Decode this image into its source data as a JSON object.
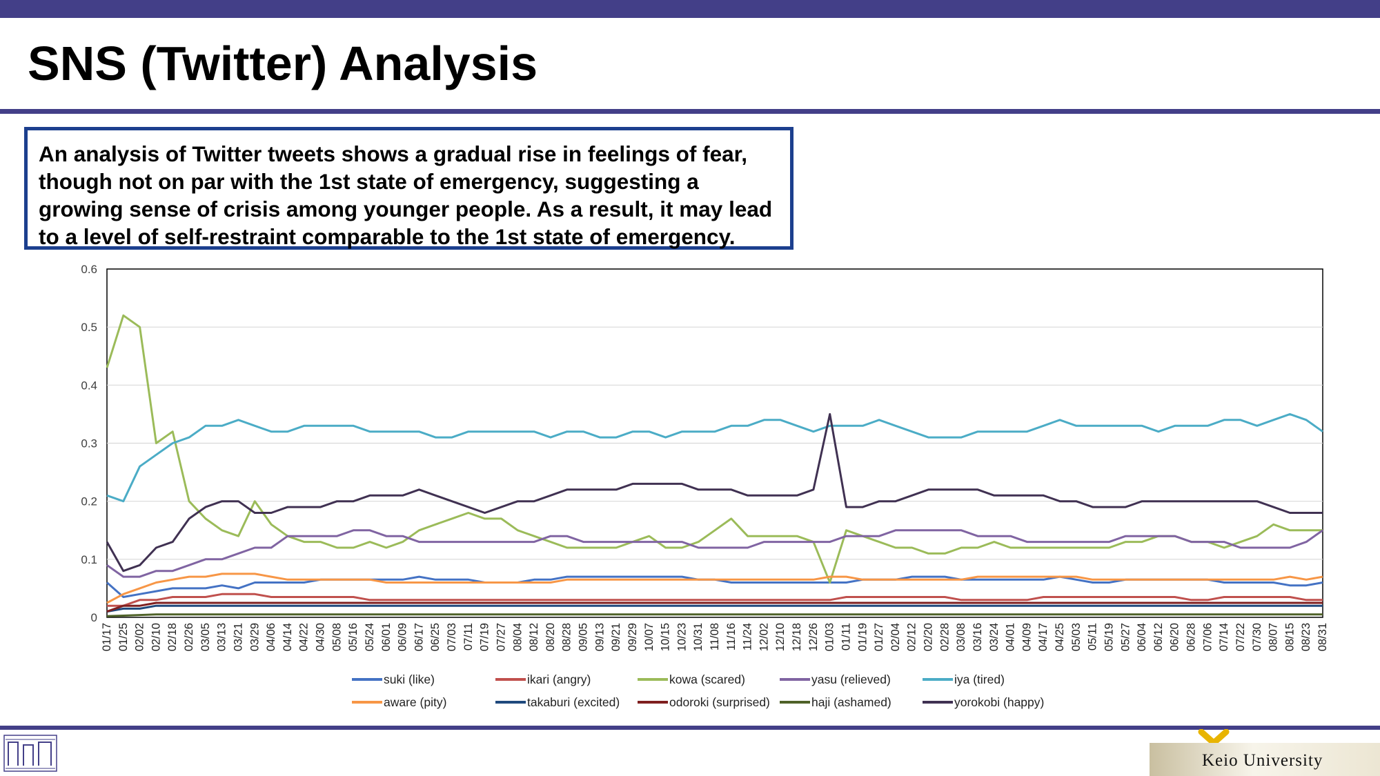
{
  "slide": {
    "title": "SNS (Twitter) Analysis",
    "summary": "An analysis of Twitter tweets shows a gradual rise in feelings of fear, though not on par with the 1st state of emergency, suggesting a growing sense of crisis among younger people. As a result, it may lead to a level of self-restraint comparable to the 1st state of emergency.",
    "footer_org": "Keio University",
    "accent_color": "#433f88",
    "box_border_color": "#1c3f8e"
  },
  "chart_data": {
    "type": "line",
    "title": "",
    "xlabel": "",
    "ylabel": "",
    "ylim": [
      0,
      0.6
    ],
    "yticks": [
      "0",
      "0.1",
      "0.2",
      "0.3",
      "0.4",
      "0.5",
      "0.6"
    ],
    "grid": "horizontal",
    "legend_position": "bottom",
    "categories": [
      "01/17",
      "01/25",
      "02/02",
      "02/10",
      "02/18",
      "02/26",
      "03/05",
      "03/13",
      "03/21",
      "03/29",
      "04/06",
      "04/14",
      "04/22",
      "04/30",
      "05/08",
      "05/16",
      "05/24",
      "06/01",
      "06/09",
      "06/17",
      "06/25",
      "07/03",
      "07/11",
      "07/19",
      "07/27",
      "08/04",
      "08/12",
      "08/20",
      "08/28",
      "09/05",
      "09/13",
      "09/21",
      "09/29",
      "10/07",
      "10/15",
      "10/23",
      "10/31",
      "11/08",
      "11/16",
      "11/24",
      "12/02",
      "12/10",
      "12/18",
      "12/26",
      "01/03",
      "01/11",
      "01/19",
      "01/27",
      "02/04",
      "02/12",
      "02/20",
      "02/28",
      "03/08",
      "03/16",
      "03/24",
      "04/01",
      "04/09",
      "04/17",
      "04/25",
      "05/03",
      "05/11",
      "05/19",
      "05/27",
      "06/04",
      "06/12",
      "06/20",
      "06/28",
      "07/06",
      "07/14",
      "07/22",
      "07/30",
      "08/07",
      "08/15",
      "08/23",
      "08/31"
    ],
    "series": [
      {
        "name": "suki (like)",
        "color": "#4472c4",
        "values": [
          0.06,
          0.035,
          0.04,
          0.045,
          0.05,
          0.05,
          0.05,
          0.055,
          0.05,
          0.06,
          0.06,
          0.06,
          0.06,
          0.065,
          0.065,
          0.065,
          0.065,
          0.065,
          0.065,
          0.07,
          0.065,
          0.065,
          0.065,
          0.06,
          0.06,
          0.06,
          0.065,
          0.065,
          0.07,
          0.07,
          0.07,
          0.07,
          0.07,
          0.07,
          0.07,
          0.07,
          0.065,
          0.065,
          0.06,
          0.06,
          0.06,
          0.06,
          0.06,
          0.06,
          0.06,
          0.06,
          0.065,
          0.065,
          0.065,
          0.07,
          0.07,
          0.07,
          0.065,
          0.065,
          0.065,
          0.065,
          0.065,
          0.065,
          0.07,
          0.065,
          0.06,
          0.06,
          0.065,
          0.065,
          0.065,
          0.065,
          0.065,
          0.065,
          0.06,
          0.06,
          0.06,
          0.06,
          0.055,
          0.055,
          0.06
        ]
      },
      {
        "name": "ikari (angry)",
        "color": "#c0504d",
        "values": [
          0.02,
          0.02,
          0.03,
          0.03,
          0.035,
          0.035,
          0.035,
          0.04,
          0.04,
          0.04,
          0.035,
          0.035,
          0.035,
          0.035,
          0.035,
          0.035,
          0.03,
          0.03,
          0.03,
          0.03,
          0.03,
          0.03,
          0.03,
          0.03,
          0.03,
          0.03,
          0.03,
          0.03,
          0.03,
          0.03,
          0.03,
          0.03,
          0.03,
          0.03,
          0.03,
          0.03,
          0.03,
          0.03,
          0.03,
          0.03,
          0.03,
          0.03,
          0.03,
          0.03,
          0.03,
          0.035,
          0.035,
          0.035,
          0.035,
          0.035,
          0.035,
          0.035,
          0.03,
          0.03,
          0.03,
          0.03,
          0.03,
          0.035,
          0.035,
          0.035,
          0.035,
          0.035,
          0.035,
          0.035,
          0.035,
          0.035,
          0.03,
          0.03,
          0.035,
          0.035,
          0.035,
          0.035,
          0.035,
          0.03,
          0.03
        ]
      },
      {
        "name": "kowa (scared)",
        "color": "#9bbb59",
        "values": [
          0.43,
          0.52,
          0.5,
          0.3,
          0.32,
          0.2,
          0.17,
          0.15,
          0.14,
          0.2,
          0.16,
          0.14,
          0.13,
          0.13,
          0.12,
          0.12,
          0.13,
          0.12,
          0.13,
          0.15,
          0.16,
          0.17,
          0.18,
          0.17,
          0.17,
          0.15,
          0.14,
          0.13,
          0.12,
          0.12,
          0.12,
          0.12,
          0.13,
          0.14,
          0.12,
          0.12,
          0.13,
          0.15,
          0.17,
          0.14,
          0.14,
          0.14,
          0.14,
          0.13,
          0.06,
          0.15,
          0.14,
          0.13,
          0.12,
          0.12,
          0.11,
          0.11,
          0.12,
          0.12,
          0.13,
          0.12,
          0.12,
          0.12,
          0.12,
          0.12,
          0.12,
          0.12,
          0.13,
          0.13,
          0.14,
          0.14,
          0.13,
          0.13,
          0.12,
          0.13,
          0.14,
          0.16,
          0.15,
          0.15,
          0.15
        ]
      },
      {
        "name": "yasu (relieved)",
        "color": "#8064a2",
        "values": [
          0.09,
          0.07,
          0.07,
          0.08,
          0.08,
          0.09,
          0.1,
          0.1,
          0.11,
          0.12,
          0.12,
          0.14,
          0.14,
          0.14,
          0.14,
          0.15,
          0.15,
          0.14,
          0.14,
          0.13,
          0.13,
          0.13,
          0.13,
          0.13,
          0.13,
          0.13,
          0.13,
          0.14,
          0.14,
          0.13,
          0.13,
          0.13,
          0.13,
          0.13,
          0.13,
          0.13,
          0.12,
          0.12,
          0.12,
          0.12,
          0.13,
          0.13,
          0.13,
          0.13,
          0.13,
          0.14,
          0.14,
          0.14,
          0.15,
          0.15,
          0.15,
          0.15,
          0.15,
          0.14,
          0.14,
          0.14,
          0.13,
          0.13,
          0.13,
          0.13,
          0.13,
          0.13,
          0.14,
          0.14,
          0.14,
          0.14,
          0.13,
          0.13,
          0.13,
          0.12,
          0.12,
          0.12,
          0.12,
          0.13,
          0.15
        ]
      },
      {
        "name": "iya (tired)",
        "color": "#4bacc6",
        "values": [
          0.21,
          0.2,
          0.26,
          0.28,
          0.3,
          0.31,
          0.33,
          0.33,
          0.34,
          0.33,
          0.32,
          0.32,
          0.33,
          0.33,
          0.33,
          0.33,
          0.32,
          0.32,
          0.32,
          0.32,
          0.31,
          0.31,
          0.32,
          0.32,
          0.32,
          0.32,
          0.32,
          0.31,
          0.32,
          0.32,
          0.31,
          0.31,
          0.32,
          0.32,
          0.31,
          0.32,
          0.32,
          0.32,
          0.33,
          0.33,
          0.34,
          0.34,
          0.33,
          0.32,
          0.33,
          0.33,
          0.33,
          0.34,
          0.33,
          0.32,
          0.31,
          0.31,
          0.31,
          0.32,
          0.32,
          0.32,
          0.32,
          0.33,
          0.34,
          0.33,
          0.33,
          0.33,
          0.33,
          0.33,
          0.32,
          0.33,
          0.33,
          0.33,
          0.34,
          0.34,
          0.33,
          0.34,
          0.35,
          0.34,
          0.32
        ]
      },
      {
        "name": "aware (pity)",
        "color": "#f79646",
        "values": [
          0.025,
          0.04,
          0.05,
          0.06,
          0.065,
          0.07,
          0.07,
          0.075,
          0.075,
          0.075,
          0.07,
          0.065,
          0.065,
          0.065,
          0.065,
          0.065,
          0.065,
          0.06,
          0.06,
          0.06,
          0.06,
          0.06,
          0.06,
          0.06,
          0.06,
          0.06,
          0.06,
          0.06,
          0.065,
          0.065,
          0.065,
          0.065,
          0.065,
          0.065,
          0.065,
          0.065,
          0.065,
          0.065,
          0.065,
          0.065,
          0.065,
          0.065,
          0.065,
          0.065,
          0.07,
          0.07,
          0.065,
          0.065,
          0.065,
          0.065,
          0.065,
          0.065,
          0.065,
          0.07,
          0.07,
          0.07,
          0.07,
          0.07,
          0.07,
          0.07,
          0.065,
          0.065,
          0.065,
          0.065,
          0.065,
          0.065,
          0.065,
          0.065,
          0.065,
          0.065,
          0.065,
          0.065,
          0.07,
          0.065,
          0.07
        ]
      },
      {
        "name": "takaburi (excited)",
        "color": "#1f497d",
        "values": [
          0.01,
          0.015,
          0.015,
          0.02,
          0.02,
          0.02,
          0.02,
          0.02,
          0.02,
          0.02,
          0.02,
          0.02,
          0.02,
          0.02,
          0.02,
          0.02,
          0.02,
          0.02,
          0.02,
          0.02,
          0.02,
          0.02,
          0.02,
          0.02,
          0.02,
          0.02,
          0.02,
          0.02,
          0.02,
          0.02,
          0.02,
          0.02,
          0.02,
          0.02,
          0.02,
          0.02,
          0.02,
          0.02,
          0.02,
          0.02,
          0.02,
          0.02,
          0.02,
          0.02,
          0.02,
          0.02,
          0.02,
          0.02,
          0.02,
          0.02,
          0.02,
          0.02,
          0.02,
          0.02,
          0.02,
          0.02,
          0.02,
          0.02,
          0.02,
          0.02,
          0.02,
          0.02,
          0.02,
          0.02,
          0.02,
          0.02,
          0.02,
          0.02,
          0.02,
          0.02,
          0.02,
          0.02,
          0.02,
          0.02,
          0.02
        ]
      },
      {
        "name": "odoroki (surprised)",
        "color": "#7f1f1f",
        "values": [
          0.01,
          0.02,
          0.02,
          0.025,
          0.025,
          0.025,
          0.025,
          0.025,
          0.025,
          0.025,
          0.025,
          0.025,
          0.025,
          0.025,
          0.025,
          0.025,
          0.025,
          0.025,
          0.025,
          0.025,
          0.025,
          0.025,
          0.025,
          0.025,
          0.025,
          0.025,
          0.025,
          0.025,
          0.025,
          0.025,
          0.025,
          0.025,
          0.025,
          0.025,
          0.025,
          0.025,
          0.025,
          0.025,
          0.025,
          0.025,
          0.025,
          0.025,
          0.025,
          0.025,
          0.025,
          0.025,
          0.025,
          0.025,
          0.025,
          0.025,
          0.025,
          0.025,
          0.025,
          0.025,
          0.025,
          0.025,
          0.025,
          0.025,
          0.025,
          0.025,
          0.025,
          0.025,
          0.025,
          0.025,
          0.025,
          0.025,
          0.025,
          0.025,
          0.025,
          0.025,
          0.025,
          0.025,
          0.025,
          0.025,
          0.025
        ]
      },
      {
        "name": "haji (ashamed)",
        "color": "#4f6228",
        "values": [
          0.002,
          0.003,
          0.004,
          0.005,
          0.005,
          0.005,
          0.005,
          0.005,
          0.005,
          0.005,
          0.005,
          0.005,
          0.005,
          0.005,
          0.005,
          0.005,
          0.005,
          0.005,
          0.005,
          0.005,
          0.005,
          0.005,
          0.005,
          0.005,
          0.005,
          0.005,
          0.005,
          0.005,
          0.005,
          0.005,
          0.005,
          0.005,
          0.005,
          0.005,
          0.005,
          0.005,
          0.005,
          0.005,
          0.005,
          0.005,
          0.005,
          0.005,
          0.005,
          0.005,
          0.005,
          0.005,
          0.005,
          0.005,
          0.005,
          0.005,
          0.005,
          0.005,
          0.005,
          0.005,
          0.005,
          0.005,
          0.005,
          0.005,
          0.005,
          0.005,
          0.005,
          0.005,
          0.005,
          0.005,
          0.005,
          0.005,
          0.005,
          0.005,
          0.005,
          0.005,
          0.005,
          0.005,
          0.005,
          0.005,
          0.005
        ]
      },
      {
        "name": "yorokobi (happy)",
        "color": "#403152",
        "values": [
          0.13,
          0.08,
          0.09,
          0.12,
          0.13,
          0.17,
          0.19,
          0.2,
          0.2,
          0.18,
          0.18,
          0.19,
          0.19,
          0.19,
          0.2,
          0.2,
          0.21,
          0.21,
          0.21,
          0.22,
          0.21,
          0.2,
          0.19,
          0.18,
          0.19,
          0.2,
          0.2,
          0.21,
          0.22,
          0.22,
          0.22,
          0.22,
          0.23,
          0.23,
          0.23,
          0.23,
          0.22,
          0.22,
          0.22,
          0.21,
          0.21,
          0.21,
          0.21,
          0.22,
          0.35,
          0.19,
          0.19,
          0.2,
          0.2,
          0.21,
          0.22,
          0.22,
          0.22,
          0.22,
          0.21,
          0.21,
          0.21,
          0.21,
          0.2,
          0.2,
          0.19,
          0.19,
          0.19,
          0.2,
          0.2,
          0.2,
          0.2,
          0.2,
          0.2,
          0.2,
          0.2,
          0.19,
          0.18,
          0.18,
          0.18
        ]
      }
    ]
  }
}
